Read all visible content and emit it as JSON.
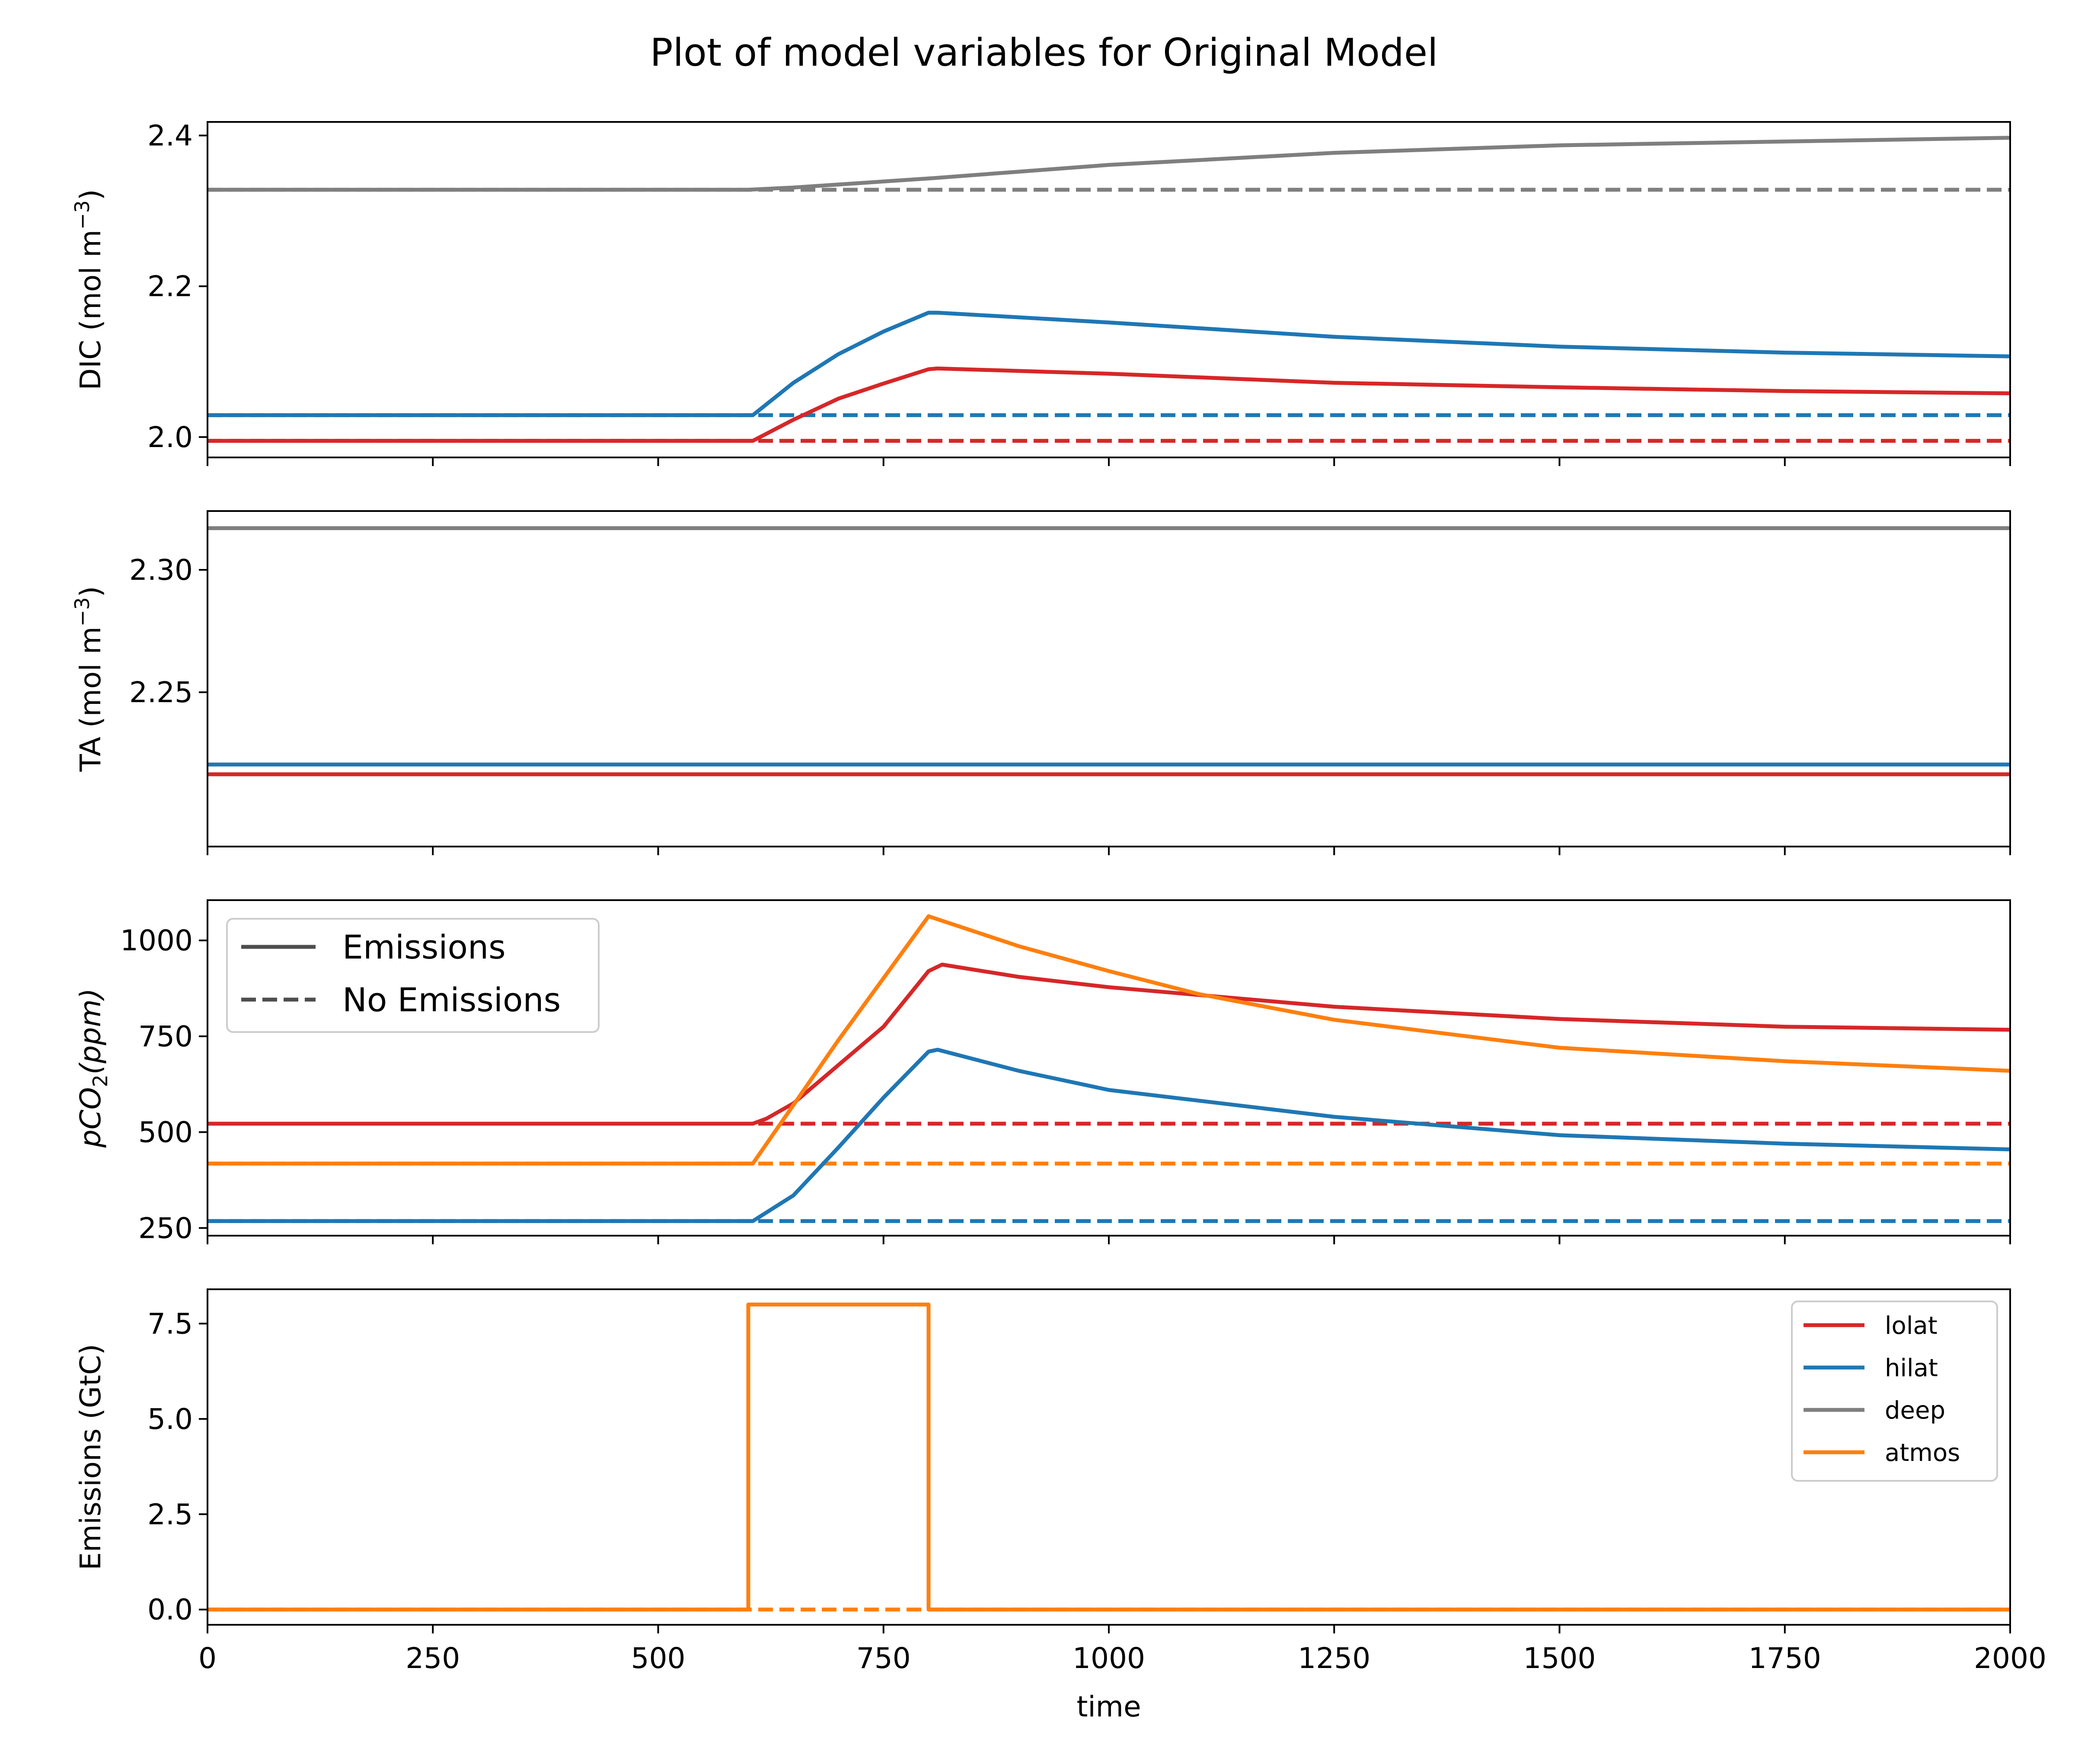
{
  "chart_data": {
    "title": "Plot of model variables for Original Model",
    "type": "line",
    "x_label": "time",
    "x_range": [
      0,
      2000
    ],
    "x_ticks": [
      0,
      250,
      500,
      750,
      1000,
      1250,
      1500,
      1750,
      2000
    ],
    "x_tick_labels": [
      "0",
      "250",
      "500",
      "750",
      "1000",
      "1250",
      "1500",
      "1750",
      "2000"
    ],
    "style_legend": {
      "placement": "top-left of pCO2 panel",
      "entries": [
        {
          "label": "Emissions",
          "dash": "solid"
        },
        {
          "label": "No Emissions",
          "dash": "dashed"
        }
      ]
    },
    "series_legend": {
      "placement": "top-right of Emissions panel",
      "entries": [
        {
          "label": "lolat",
          "color": "#d62728"
        },
        {
          "label": "hilat",
          "color": "#1f77b4"
        },
        {
          "label": "deep",
          "color": "#7f7f7f"
        },
        {
          "label": "atmos",
          "color": "#ff7f0e"
        }
      ]
    },
    "panels": [
      {
        "id": "dic",
        "ylabel": "DIC (mol m$^{-3}$)",
        "ylabel_main": "DIC (mol m",
        "ylabel_sup": "−3",
        "ylabel_tail": ")",
        "ylim": [
          1.973,
          2.418
        ],
        "yticks": [
          2.0,
          2.2,
          2.4
        ],
        "ytick_labels": [
          "2.0",
          "2.2",
          "2.4"
        ],
        "series": [
          {
            "name": "deep",
            "color": "#7f7f7f",
            "dash": "solid",
            "points": [
              [
                0,
                2.328
              ],
              [
                600,
                2.328
              ],
              [
                650,
                2.331
              ],
              [
                700,
                2.335
              ],
              [
                800,
                2.343
              ],
              [
                900,
                2.352
              ],
              [
                1000,
                2.361
              ],
              [
                1250,
                2.377
              ],
              [
                1500,
                2.387
              ],
              [
                1750,
                2.392
              ],
              [
                2000,
                2.397
              ]
            ]
          },
          {
            "name": "deep",
            "color": "#7f7f7f",
            "dash": "dashed",
            "points": [
              [
                0,
                2.328
              ],
              [
                2000,
                2.328
              ]
            ]
          },
          {
            "name": "hilat",
            "color": "#1f77b4",
            "dash": "solid",
            "points": [
              [
                0,
                2.029
              ],
              [
                605,
                2.029
              ],
              [
                650,
                2.072
              ],
              [
                700,
                2.11
              ],
              [
                750,
                2.14
              ],
              [
                800,
                2.165
              ],
              [
                810,
                2.165
              ],
              [
                1000,
                2.152
              ],
              [
                1250,
                2.133
              ],
              [
                1500,
                2.12
              ],
              [
                1750,
                2.112
              ],
              [
                2000,
                2.107
              ]
            ]
          },
          {
            "name": "hilat",
            "color": "#1f77b4",
            "dash": "dashed",
            "points": [
              [
                0,
                2.029
              ],
              [
                2000,
                2.029
              ]
            ]
          },
          {
            "name": "lolat",
            "color": "#d62728",
            "dash": "solid",
            "points": [
              [
                0,
                1.995
              ],
              [
                605,
                1.995
              ],
              [
                650,
                2.023
              ],
              [
                700,
                2.051
              ],
              [
                750,
                2.071
              ],
              [
                800,
                2.09
              ],
              [
                810,
                2.091
              ],
              [
                1000,
                2.084
              ],
              [
                1250,
                2.072
              ],
              [
                1500,
                2.066
              ],
              [
                1750,
                2.061
              ],
              [
                2000,
                2.058
              ]
            ]
          },
          {
            "name": "lolat",
            "color": "#d62728",
            "dash": "dashed",
            "points": [
              [
                0,
                1.995
              ],
              [
                2000,
                1.995
              ]
            ]
          }
        ]
      },
      {
        "id": "ta",
        "ylabel": "TA (mol m$^{-3}$)",
        "ylabel_main": "TA (mol m",
        "ylabel_sup": "−3",
        "ylabel_tail": ")",
        "ylim": [
          2.187,
          2.324
        ],
        "yticks": [
          2.25,
          2.3
        ],
        "ytick_labels": [
          "2.25",
          "2.30"
        ],
        "series": [
          {
            "name": "deep",
            "color": "#7f7f7f",
            "dash": "solid",
            "points": [
              [
                0,
                2.317
              ],
              [
                2000,
                2.317
              ]
            ]
          },
          {
            "name": "hilat",
            "color": "#1f77b4",
            "dash": "solid",
            "points": [
              [
                0,
                2.2205
              ],
              [
                2000,
                2.2205
              ]
            ]
          },
          {
            "name": "lolat",
            "color": "#d62728",
            "dash": "solid",
            "points": [
              [
                0,
                2.2165
              ],
              [
                2000,
                2.2165
              ]
            ]
          }
        ]
      },
      {
        "id": "pco2",
        "ylabel": "pCO2(ppm)",
        "ylabel_main": "pCO",
        "ylabel_sub": "2",
        "ylabel_tail": "(ppm)",
        "ylim": [
          230,
          1105
        ],
        "yticks": [
          250,
          500,
          750,
          1000
        ],
        "ytick_labels": [
          "250",
          "500",
          "750",
          "1000"
        ],
        "series": [
          {
            "name": "lolat",
            "color": "#d62728",
            "dash": "solid",
            "points": [
              [
                0,
                522
              ],
              [
                605,
                522
              ],
              [
                620,
                535
              ],
              [
                650,
                575
              ],
              [
                700,
                675
              ],
              [
                750,
                775
              ],
              [
                800,
                920
              ],
              [
                815,
                937
              ],
              [
                900,
                905
              ],
              [
                1000,
                878
              ],
              [
                1250,
                827
              ],
              [
                1500,
                795
              ],
              [
                1750,
                775
              ],
              [
                2000,
                767
              ]
            ]
          },
          {
            "name": "lolat",
            "color": "#d62728",
            "dash": "dashed",
            "points": [
              [
                0,
                522
              ],
              [
                2000,
                522
              ]
            ]
          },
          {
            "name": "atmos",
            "color": "#ff7f0e",
            "dash": "solid",
            "points": [
              [
                0,
                418
              ],
              [
                605,
                418
              ],
              [
                700,
                740
              ],
              [
                800,
                1063
              ],
              [
                900,
                985
              ],
              [
                1000,
                920
              ],
              [
                1100,
                860
              ],
              [
                1250,
                793
              ],
              [
                1500,
                720
              ],
              [
                1750,
                685
              ],
              [
                2000,
                660
              ]
            ]
          },
          {
            "name": "atmos",
            "color": "#ff7f0e",
            "dash": "dashed",
            "points": [
              [
                0,
                418
              ],
              [
                2000,
                418
              ]
            ]
          },
          {
            "name": "hilat",
            "color": "#1f77b4",
            "dash": "solid",
            "points": [
              [
                0,
                268
              ],
              [
                605,
                268
              ],
              [
                650,
                335
              ],
              [
                700,
                460
              ],
              [
                750,
                590
              ],
              [
                800,
                710
              ],
              [
                810,
                715
              ],
              [
                900,
                660
              ],
              [
                1000,
                610
              ],
              [
                1250,
                540
              ],
              [
                1500,
                492
              ],
              [
                1750,
                470
              ],
              [
                2000,
                455
              ]
            ]
          },
          {
            "name": "hilat",
            "color": "#1f77b4",
            "dash": "dashed",
            "points": [
              [
                0,
                268
              ],
              [
                2000,
                268
              ]
            ]
          }
        ]
      },
      {
        "id": "emissions",
        "ylabel": "Emissions (GtC)",
        "ylabel_main": "Emissions (GtC)",
        "ylim": [
          -0.4,
          8.4
        ],
        "yticks": [
          0.0,
          2.5,
          5.0,
          7.5
        ],
        "ytick_labels": [
          "0.0",
          "2.5",
          "5.0",
          "7.5"
        ],
        "series": [
          {
            "name": "atmos",
            "color": "#ff7f0e",
            "dash": "dashed",
            "points": [
              [
                0,
                0
              ],
              [
                2000,
                0
              ]
            ]
          },
          {
            "name": "atmos",
            "color": "#ff7f0e",
            "dash": "solid",
            "points": [
              [
                0,
                0
              ],
              [
                600,
                0
              ],
              [
                600,
                8
              ],
              [
                800,
                8
              ],
              [
                800,
                0
              ],
              [
                2000,
                0
              ]
            ]
          }
        ]
      }
    ]
  }
}
